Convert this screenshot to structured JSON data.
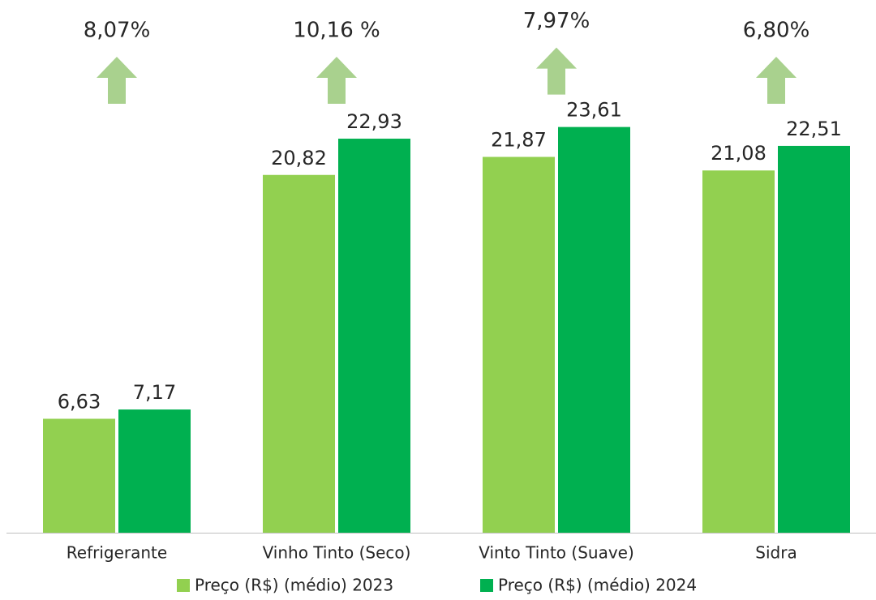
{
  "chart_data": {
    "type": "bar",
    "categories": [
      "Refrigerante",
      "Vinho Tinto (Seco)",
      "Vinto Tinto (Suave)",
      "Sidra"
    ],
    "series": [
      {
        "name": "Preço (R$) (médio) 2023",
        "color": "#92d050",
        "values": [
          6.63,
          20.82,
          21.87,
          21.08
        ],
        "value_labels": [
          "6,63",
          "20,82",
          "21,87",
          "21,08"
        ]
      },
      {
        "name": "Preço (R$) (médio) 2024",
        "color": "#00b050",
        "values": [
          7.17,
          22.93,
          23.61,
          22.51
        ],
        "value_labels": [
          "7,17",
          "22,93",
          "23,61",
          "22,51"
        ]
      }
    ],
    "annotations": [
      "8,07%",
      "10,16 %",
      "7,97%",
      "6,80%"
    ],
    "annotation_color": "#a9d18e",
    "ylim": [
      0,
      31
    ]
  }
}
